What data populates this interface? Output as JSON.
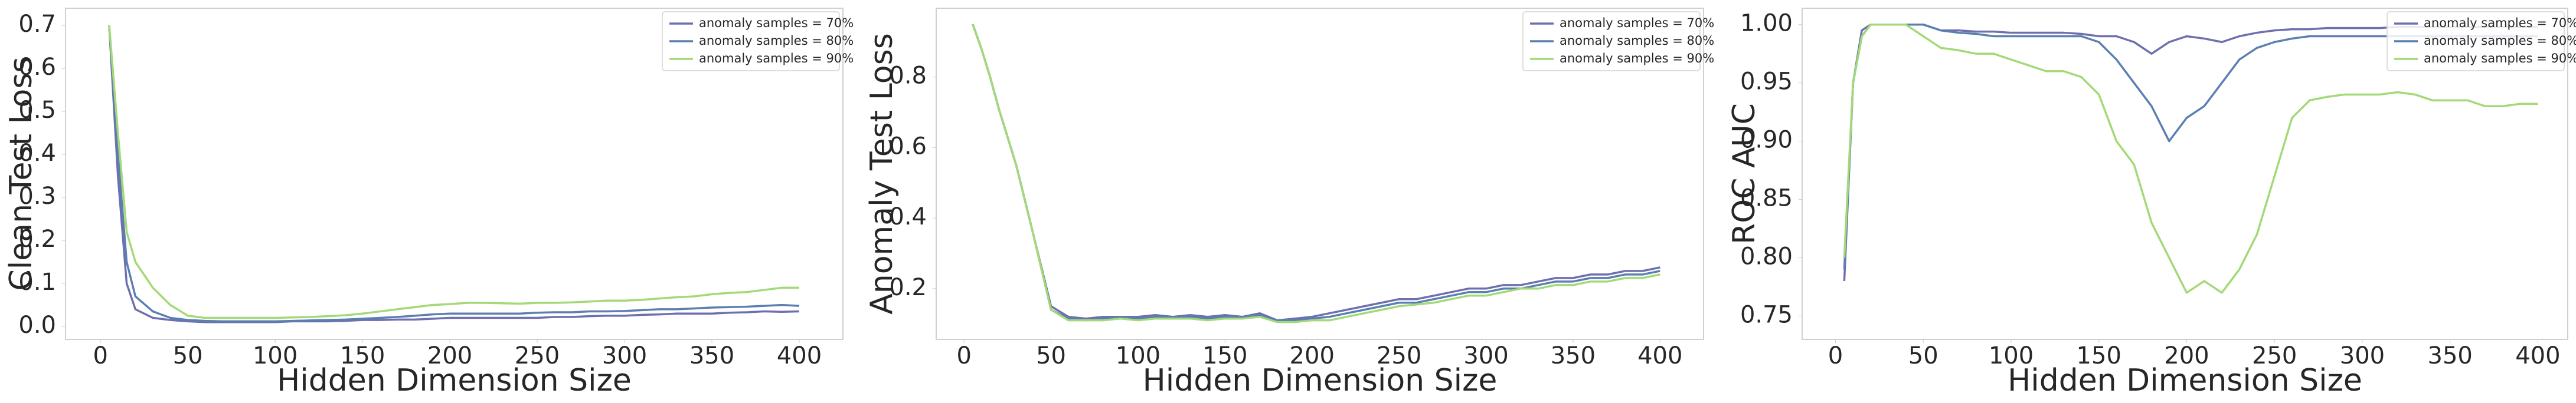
{
  "chart_data": [
    {
      "type": "line",
      "ylabel": "Clean Test Loss",
      "xlabel": "Hidden Dimension Size",
      "x": [
        5,
        10,
        15,
        20,
        30,
        40,
        50,
        60,
        70,
        80,
        90,
        100,
        110,
        120,
        130,
        140,
        150,
        160,
        170,
        180,
        190,
        200,
        210,
        220,
        230,
        240,
        250,
        260,
        270,
        280,
        290,
        300,
        310,
        320,
        330,
        340,
        350,
        360,
        370,
        380,
        390,
        400
      ],
      "xlim": [
        -20,
        425
      ],
      "ylim": [
        -0.03,
        0.74
      ],
      "xticks": [
        0,
        50,
        100,
        150,
        200,
        250,
        300,
        350,
        400
      ],
      "yticks": [
        {
          "value": 0,
          "label": "0.0"
        },
        0.1,
        0.2,
        0.3,
        0.4,
        0.5,
        0.6,
        0.7
      ],
      "legend": "upper right",
      "series": [
        {
          "name": "anomaly samples = 70%",
          "color": "#6e6fae",
          "values": [
            0.7,
            0.35,
            0.1,
            0.04,
            0.02,
            0.015,
            0.012,
            0.01,
            0.01,
            0.01,
            0.01,
            0.01,
            0.012,
            0.012,
            0.012,
            0.013,
            0.015,
            0.015,
            0.016,
            0.016,
            0.018,
            0.02,
            0.02,
            0.02,
            0.02,
            0.02,
            0.02,
            0.022,
            0.022,
            0.024,
            0.025,
            0.025,
            0.027,
            0.028,
            0.03,
            0.03,
            0.03,
            0.032,
            0.033,
            0.035,
            0.034,
            0.035
          ]
        },
        {
          "name": "anomaly samples = 80%",
          "color": "#5a7fb0",
          "values": [
            0.7,
            0.4,
            0.15,
            0.07,
            0.035,
            0.02,
            0.015,
            0.013,
            0.012,
            0.012,
            0.012,
            0.012,
            0.013,
            0.014,
            0.015,
            0.016,
            0.018,
            0.02,
            0.022,
            0.025,
            0.028,
            0.03,
            0.03,
            0.03,
            0.03,
            0.03,
            0.032,
            0.033,
            0.033,
            0.035,
            0.035,
            0.036,
            0.038,
            0.04,
            0.04,
            0.042,
            0.044,
            0.045,
            0.046,
            0.048,
            0.05,
            0.048
          ]
        },
        {
          "name": "anomaly samples = 90%",
          "color": "#a3d977",
          "values": [
            0.7,
            0.45,
            0.22,
            0.15,
            0.09,
            0.05,
            0.025,
            0.02,
            0.02,
            0.02,
            0.02,
            0.02,
            0.021,
            0.022,
            0.024,
            0.026,
            0.03,
            0.035,
            0.04,
            0.045,
            0.05,
            0.052,
            0.055,
            0.055,
            0.054,
            0.053,
            0.055,
            0.055,
            0.056,
            0.058,
            0.06,
            0.06,
            0.062,
            0.065,
            0.068,
            0.07,
            0.075,
            0.078,
            0.08,
            0.085,
            0.09,
            0.09
          ]
        }
      ]
    },
    {
      "type": "line",
      "ylabel": "Anomaly Test Loss",
      "xlabel": "Hidden Dimension Size",
      "x": [
        5,
        10,
        15,
        20,
        30,
        40,
        50,
        60,
        70,
        80,
        90,
        100,
        110,
        120,
        130,
        140,
        150,
        160,
        170,
        180,
        190,
        200,
        210,
        220,
        230,
        240,
        250,
        260,
        270,
        280,
        290,
        300,
        310,
        320,
        330,
        340,
        350,
        360,
        370,
        380,
        390,
        400
      ],
      "xlim": [
        -16,
        425
      ],
      "ylim": [
        0.056,
        0.995
      ],
      "xticks": [
        0,
        50,
        100,
        150,
        200,
        250,
        300,
        350,
        400
      ],
      "yticks": [
        0.2,
        0.4,
        0.6,
        0.8
      ],
      "legend": "upper right",
      "series": [
        {
          "name": "anomaly samples = 70%",
          "color": "#6e6fae",
          "values": [
            0.95,
            0.88,
            0.8,
            0.71,
            0.55,
            0.35,
            0.15,
            0.12,
            0.115,
            0.12,
            0.12,
            0.12,
            0.125,
            0.12,
            0.125,
            0.12,
            0.125,
            0.12,
            0.13,
            0.11,
            0.115,
            0.12,
            0.13,
            0.14,
            0.15,
            0.16,
            0.17,
            0.17,
            0.18,
            0.19,
            0.2,
            0.2,
            0.21,
            0.21,
            0.22,
            0.23,
            0.23,
            0.24,
            0.24,
            0.25,
            0.25,
            0.26
          ]
        },
        {
          "name": "anomaly samples = 80%",
          "color": "#5a7fb0",
          "values": [
            0.95,
            0.88,
            0.8,
            0.71,
            0.55,
            0.35,
            0.14,
            0.115,
            0.11,
            0.115,
            0.12,
            0.115,
            0.12,
            0.12,
            0.12,
            0.115,
            0.12,
            0.12,
            0.125,
            0.11,
            0.11,
            0.115,
            0.12,
            0.13,
            0.14,
            0.15,
            0.16,
            0.16,
            0.17,
            0.18,
            0.19,
            0.19,
            0.2,
            0.2,
            0.21,
            0.22,
            0.22,
            0.23,
            0.23,
            0.24,
            0.24,
            0.25
          ]
        },
        {
          "name": "anomaly samples = 90%",
          "color": "#a3d977",
          "values": [
            0.95,
            0.88,
            0.8,
            0.71,
            0.55,
            0.35,
            0.14,
            0.11,
            0.11,
            0.11,
            0.115,
            0.11,
            0.115,
            0.115,
            0.115,
            0.11,
            0.115,
            0.115,
            0.12,
            0.105,
            0.105,
            0.11,
            0.11,
            0.12,
            0.13,
            0.14,
            0.15,
            0.155,
            0.16,
            0.17,
            0.18,
            0.18,
            0.19,
            0.2,
            0.2,
            0.21,
            0.21,
            0.22,
            0.22,
            0.23,
            0.23,
            0.24
          ]
        }
      ]
    },
    {
      "type": "line",
      "ylabel": "ROC AUC",
      "xlabel": "Hidden Dimension Size",
      "x": [
        5,
        10,
        15,
        20,
        30,
        40,
        50,
        60,
        70,
        80,
        90,
        100,
        110,
        120,
        130,
        140,
        150,
        160,
        170,
        180,
        190,
        200,
        210,
        220,
        230,
        240,
        250,
        260,
        270,
        280,
        290,
        300,
        310,
        320,
        330,
        340,
        350,
        360,
        370,
        380,
        390,
        400
      ],
      "xlim": [
        -19,
        417
      ],
      "ylim": [
        0.73,
        1.014
      ],
      "xticks": [
        0,
        50,
        100,
        150,
        200,
        250,
        300,
        350,
        400
      ],
      "yticks": [
        0.75,
        {
          "value": 0.8,
          "label": "0.80"
        },
        0.85,
        {
          "value": 0.9,
          "label": "0.90"
        },
        0.95,
        {
          "value": 1,
          "label": "1.00"
        }
      ],
      "legend": "upper right",
      "series": [
        {
          "name": "anomaly samples = 70%",
          "color": "#6e6fae",
          "values": [
            0.78,
            0.95,
            0.995,
            1.0,
            1.0,
            1.0,
            1.0,
            0.995,
            0.995,
            0.994,
            0.994,
            0.993,
            0.993,
            0.993,
            0.993,
            0.992,
            0.99,
            0.99,
            0.985,
            0.975,
            0.985,
            0.99,
            0.988,
            0.985,
            0.99,
            0.993,
            0.995,
            0.996,
            0.996,
            0.997,
            0.997,
            0.997,
            0.997,
            0.998,
            0.998,
            0.998,
            0.998,
            0.998,
            0.998,
            0.998,
            0.998,
            0.998
          ]
        },
        {
          "name": "anomaly samples = 80%",
          "color": "#5a7fb0",
          "values": [
            0.79,
            0.95,
            0.99,
            1.0,
            1.0,
            1.0,
            1.0,
            0.995,
            0.993,
            0.992,
            0.99,
            0.99,
            0.99,
            0.99,
            0.99,
            0.99,
            0.985,
            0.97,
            0.95,
            0.93,
            0.9,
            0.92,
            0.93,
            0.95,
            0.97,
            0.98,
            0.985,
            0.988,
            0.99,
            0.99,
            0.99,
            0.99,
            0.99,
            0.99,
            0.99,
            0.99,
            0.99,
            0.99,
            0.99,
            0.99,
            0.99,
            0.99
          ]
        },
        {
          "name": "anomaly samples = 90%",
          "color": "#a3d977",
          "values": [
            0.8,
            0.95,
            0.99,
            1.0,
            1.0,
            1.0,
            0.99,
            0.98,
            0.978,
            0.975,
            0.975,
            0.97,
            0.965,
            0.96,
            0.96,
            0.955,
            0.94,
            0.9,
            0.88,
            0.83,
            0.8,
            0.77,
            0.78,
            0.77,
            0.79,
            0.82,
            0.87,
            0.92,
            0.935,
            0.938,
            0.94,
            0.94,
            0.94,
            0.942,
            0.94,
            0.935,
            0.935,
            0.935,
            0.93,
            0.93,
            0.932,
            0.932
          ]
        }
      ]
    }
  ]
}
